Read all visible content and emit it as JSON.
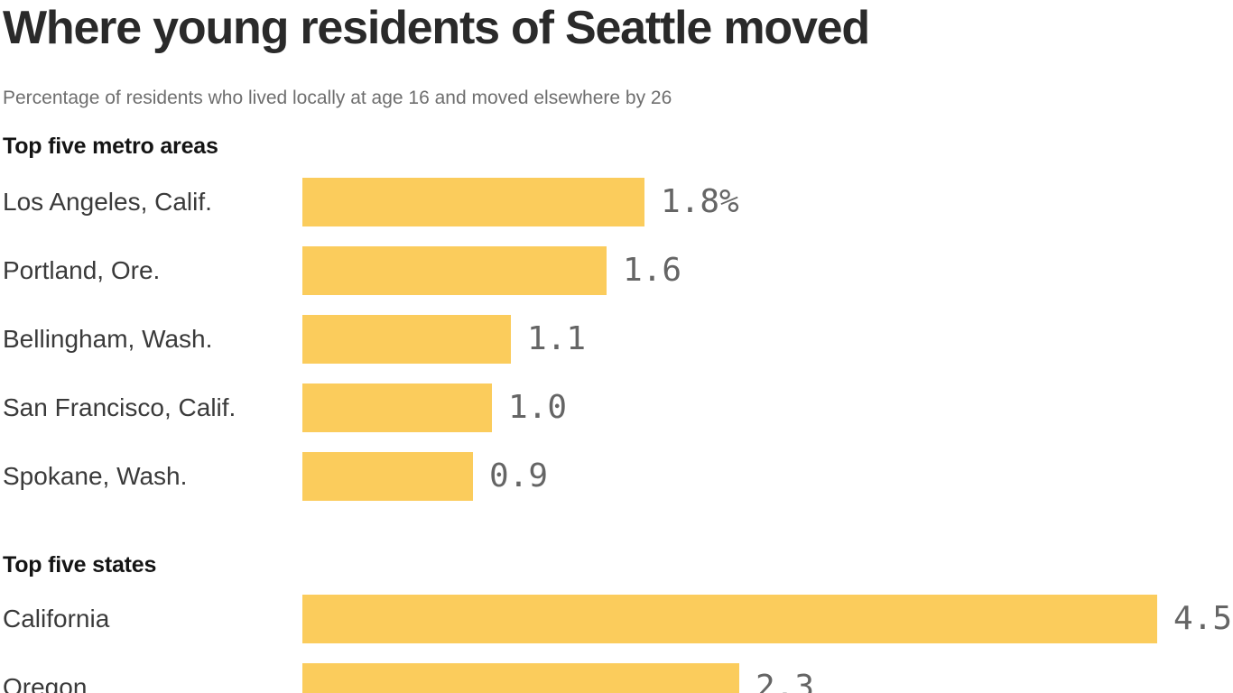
{
  "header": {
    "title": "Where young residents of Seattle moved",
    "subtitle": "Percentage of residents who lived locally at age 16 and moved elsewhere by 26"
  },
  "colors": {
    "bar": "#fbcc5c",
    "title": "#2a2a2a",
    "subtitle": "#6e6e6e",
    "section": "#141414",
    "label": "#3a3a3a",
    "value": "#656565"
  },
  "chart_data": [
    {
      "type": "bar",
      "orientation": "horizontal",
      "section_title": "Top five metro areas",
      "categories": [
        "Los Angeles, Calif.",
        "Portland, Ore.",
        "Bellingham, Wash.",
        "San Francisco, Calif.",
        "Spokane, Wash."
      ],
      "values": [
        1.8,
        1.6,
        1.1,
        1.0,
        0.9
      ],
      "value_labels": [
        "1.8%",
        "1.6",
        "1.1",
        "1.0",
        "0.9"
      ],
      "xlim": [
        0,
        4.5
      ],
      "grid": false,
      "legend": "none",
      "bar_color": "#fbcc5c"
    },
    {
      "type": "bar",
      "orientation": "horizontal",
      "section_title": "Top five states",
      "categories": [
        "California",
        "Oregon"
      ],
      "values": [
        4.5,
        2.3
      ],
      "value_labels": [
        "4.5",
        "2.3"
      ],
      "xlim": [
        0,
        4.5
      ],
      "grid": false,
      "legend": "none",
      "bar_color": "#fbcc5c"
    }
  ]
}
